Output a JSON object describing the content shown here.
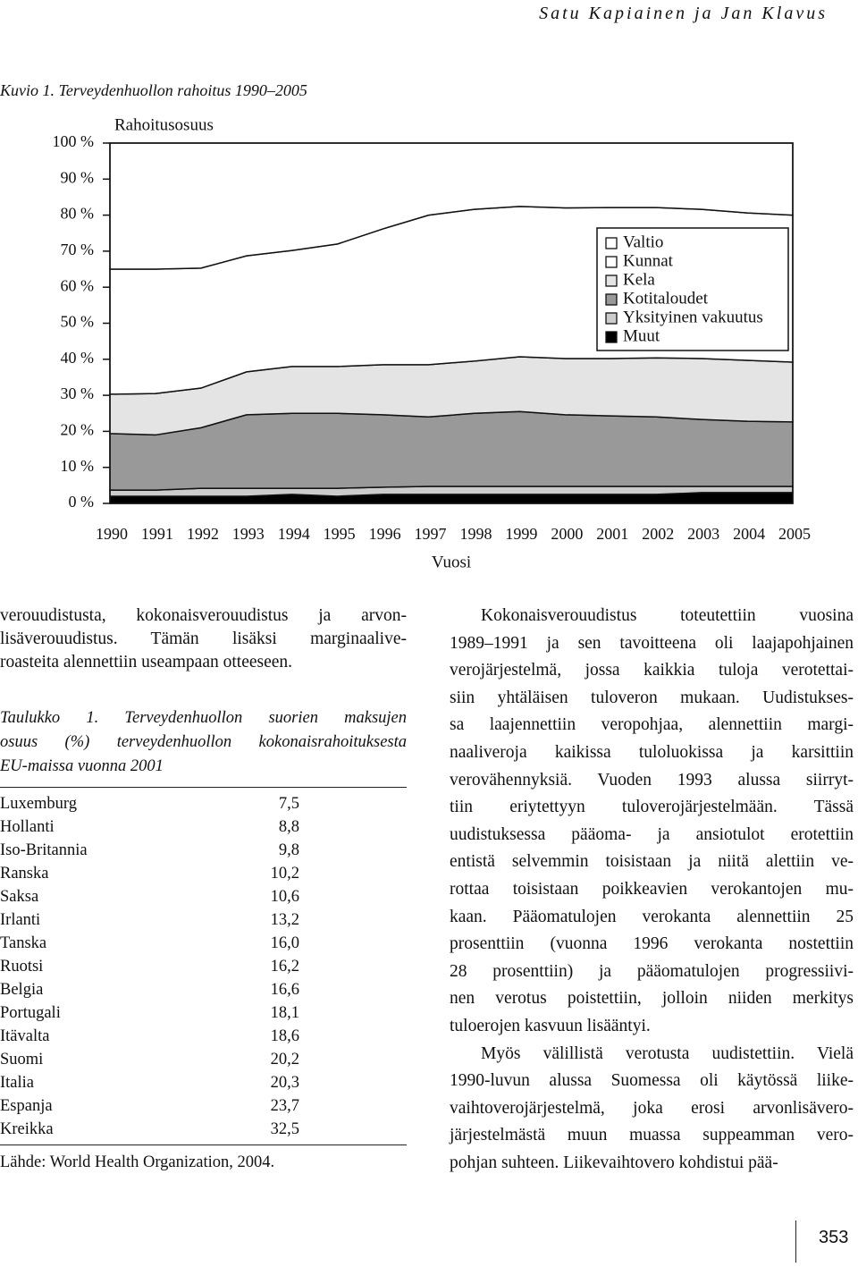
{
  "header": {
    "running_title": "Satu Kapiainen ja Jan Klavus"
  },
  "chart_data": {
    "type": "stacked-area",
    "title": "Kuvio 1. Terveydenhuollon rahoitus 1990–2005",
    "y_label": "Rahoitusosuus",
    "x_label": "Vuosi",
    "x": [
      1990,
      1991,
      1992,
      1993,
      1994,
      1995,
      1996,
      1997,
      1998,
      1999,
      2000,
      2001,
      2002,
      2003,
      2004,
      2005
    ],
    "xlim": [
      1990,
      2005
    ],
    "ylim": [
      0,
      100
    ],
    "yticks": [
      {
        "value": 0,
        "label": "0 %"
      },
      {
        "value": 10,
        "label": "10 %"
      },
      {
        "value": 20,
        "label": "20 %"
      },
      {
        "value": 30,
        "label": "30 %"
      },
      {
        "value": 40,
        "label": "40 %"
      },
      {
        "value": 50,
        "label": "50 %"
      },
      {
        "value": 60,
        "label": "60 %"
      },
      {
        "value": 70,
        "label": "70 %"
      },
      {
        "value": 80,
        "label": "80 %"
      },
      {
        "value": 90,
        "label": "90 %"
      },
      {
        "value": 100,
        "label": "100 %"
      }
    ],
    "legend": "right",
    "series": [
      {
        "name": "Valtio",
        "color": "#ffffff",
        "values": [
          35,
          35,
          34.7,
          31.3,
          29.8,
          28,
          23.8,
          20,
          18.4,
          17.6,
          18,
          17.9,
          17.9,
          18.4,
          19.4,
          20
        ]
      },
      {
        "name": "Kunnat",
        "color": "#ffffff",
        "values": [
          34.7,
          34.5,
          33.3,
          32.2,
          32.2,
          34,
          37.7,
          41.5,
          42.1,
          41.7,
          41.8,
          41.9,
          41.7,
          41.4,
          40.9,
          40.8
        ]
      },
      {
        "name": "Kela",
        "color": "#e4e4e4",
        "values": [
          10.9,
          11.5,
          11,
          11.9,
          13,
          13,
          13.9,
          14.5,
          14.5,
          15.2,
          15.6,
          15.9,
          16.4,
          16.9,
          16.9,
          16.6
        ]
      },
      {
        "name": "Kotitaloudet",
        "color": "#999999",
        "values": [
          15.7,
          15.3,
          16.8,
          20.4,
          20.8,
          20.8,
          20.1,
          19.3,
          20.3,
          20.8,
          19.9,
          19.6,
          19.3,
          18.6,
          18.1,
          17.9
        ]
      },
      {
        "name": "Yksityinen vakuutus",
        "color": "#cccccc",
        "values": [
          1.7,
          1.7,
          2.2,
          2.2,
          1.7,
          2.2,
          2,
          2.2,
          2.2,
          2.2,
          2.2,
          2.2,
          2.2,
          1.7,
          1.7,
          1.7
        ]
      },
      {
        "name": "Muut",
        "color": "#000000",
        "values": [
          2,
          2,
          2,
          2,
          2.5,
          2,
          2.5,
          2.5,
          2.5,
          2.5,
          2.5,
          2.5,
          2.5,
          3,
          3,
          3
        ]
      }
    ]
  },
  "left_column": {
    "paragraph": [
      "verouudistusta, kokonaisverouudistus ja arvon-",
      "lisäverouudistus. Tämän lisäksi marginaalive-",
      "roasteita alennettiin useampaan otteeseen."
    ],
    "table": {
      "caption": [
        "Taulukko 1. Terveydenhuollon suorien maksujen",
        "osuus (%) terveydenhuollon kokonaisrahoituksesta",
        "EU-maissa vuonna 2001"
      ],
      "rows": [
        [
          "Luxemburg",
          "7,5"
        ],
        [
          "Hollanti",
          "8,8"
        ],
        [
          "Iso-Britannia",
          "9,8"
        ],
        [
          "Ranska",
          "10,2"
        ],
        [
          "Saksa",
          "10,6"
        ],
        [
          "Irlanti",
          "13,2"
        ],
        [
          "Tanska",
          "16,0"
        ],
        [
          "Ruotsi",
          "16,2"
        ],
        [
          "Belgia",
          "16,6"
        ],
        [
          "Portugali",
          "18,1"
        ],
        [
          "Itävalta",
          "18,6"
        ],
        [
          "Suomi",
          "20,2"
        ],
        [
          "Italia",
          "20,3"
        ],
        [
          "Espanja",
          "23,7"
        ],
        [
          "Kreikka",
          "32,5"
        ]
      ],
      "source": "Lähde: World Health Organization, 2004."
    }
  },
  "right_column": {
    "paragraphs": [
      [
        "Kokonaisverouudistus toteutettiin vuosina",
        "1989–1991 ja sen tavoitteena oli laajapohjainen",
        "verojärjestelmä, jossa kaikkia tuloja verotettai-",
        "siin yhtäläisen tuloveron mukaan. Uudistukses-",
        "sa laajennettiin veropohjaa, alennettiin margi-",
        "naaliveroja kaikissa tuloluokissa ja karsittiin",
        "verovähennyksiä. Vuoden 1993 alussa siirryt-",
        "tiin eriytettyyn tuloverojärjestelmään. Tässä",
        "uudistuksessa pääoma- ja ansiotulot erotettiin",
        "entistä selvemmin toisistaan ja niitä alettiin ve-",
        "rottaa toisistaan poikkeavien verokantojen mu-",
        "kaan. Pääomatulojen verokanta alennettiin 25",
        "prosenttiin (vuonna 1996 verokanta nostettiin",
        "28 prosenttiin) ja pääomatulojen progressiivi-",
        "nen verotus poistettiin, jolloin niiden merkitys",
        "tuloerojen kasvuun lisääntyi."
      ],
      [
        "Myös välillistä verotusta uudistettiin. Vielä",
        "1990-luvun alussa Suomessa oli käytössä liike-",
        "vaihtoverojärjestelmä, joka erosi arvonlisävero-",
        "järjestelmästä muun muassa suppeamman vero-",
        "pohjan suhteen. Liikevaihtovero kohdistui pää-"
      ]
    ]
  },
  "footer": {
    "page_number": "353"
  }
}
